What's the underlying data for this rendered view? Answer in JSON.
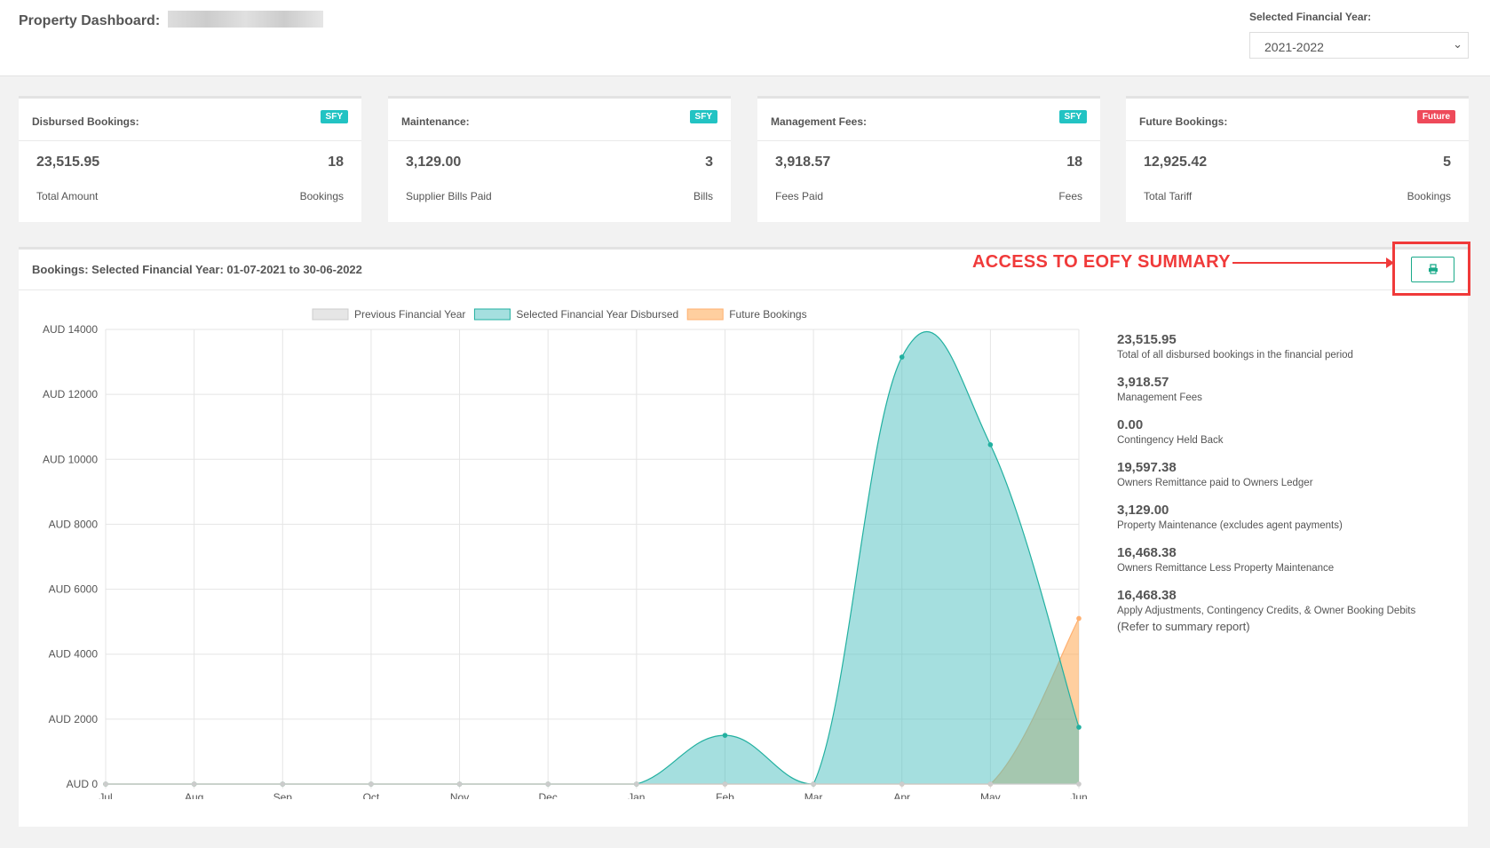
{
  "header": {
    "title": "Property Dashboard:",
    "fy_label": "Selected Financial Year:",
    "fy_value": "2021-2022"
  },
  "cards": [
    {
      "title": "Disbursed Bookings:",
      "badge": "SFY",
      "badge_color": "#22c3c3",
      "amount": "23,515.95",
      "amount_label": "Total Amount",
      "count": "18",
      "count_label": "Bookings"
    },
    {
      "title": "Maintenance:",
      "badge": "SFY",
      "badge_color": "#22c3c3",
      "amount": "3,129.00",
      "amount_label": "Supplier Bills Paid",
      "count": "3",
      "count_label": "Bills"
    },
    {
      "title": "Management Fees:",
      "badge": "SFY",
      "badge_color": "#22c3c3",
      "amount": "3,918.57",
      "amount_label": "Fees Paid",
      "count": "18",
      "count_label": "Fees"
    },
    {
      "title": "Future Bookings:",
      "badge": "Future",
      "badge_color": "#ee4a5a",
      "amount": "12,925.42",
      "amount_label": "Total Tariff",
      "count": "5",
      "count_label": "Bookings"
    }
  ],
  "panel": {
    "title": "Bookings: Selected Financial Year: 01-07-2021 to 30-06-2022",
    "annotation": "ACCESS TO EOFY SUMMARY",
    "print_icon": "printer-icon"
  },
  "summary": [
    {
      "value": "23,515.95",
      "label": "Total of all disbursed bookings in the financial period"
    },
    {
      "value": "3,918.57",
      "label": "Management Fees"
    },
    {
      "value": "0.00",
      "label": "Contingency Held Back"
    },
    {
      "value": "19,597.38",
      "label": "Owners Remittance paid to Owners Ledger"
    },
    {
      "value": "3,129.00",
      "label": "Property Maintenance (excludes agent payments)"
    },
    {
      "value": "16,468.38",
      "label": "Owners Remittance Less Property Maintenance"
    },
    {
      "value": "16,468.38",
      "label": "Apply Adjustments, Contingency Credits, & Owner Booking Debits"
    }
  ],
  "summary_note": "(Refer to summary report)",
  "chart_data": {
    "type": "area",
    "categories": [
      "Jul",
      "Aug",
      "Sep",
      "Oct",
      "Nov",
      "Dec",
      "Jan",
      "Feb",
      "Mar",
      "Apr",
      "May",
      "Jun"
    ],
    "ylim": [
      0,
      14000
    ],
    "yticks": [
      0,
      2000,
      4000,
      6000,
      8000,
      10000,
      12000,
      14000
    ],
    "ytick_prefix": "AUD ",
    "legend_position": "top",
    "series": [
      {
        "name": "Previous Financial Year",
        "color": "#cccccc",
        "fill": "#e6e6e6",
        "values": [
          0,
          0,
          0,
          0,
          0,
          0,
          0,
          0,
          0,
          0,
          0,
          0
        ]
      },
      {
        "name": "Selected Financial Year Disbursed",
        "color": "#22b0a0",
        "fill": "rgba(75,192,192,0.5)",
        "values": [
          0,
          0,
          0,
          0,
          0,
          0,
          0,
          1500,
          0,
          13150,
          10450,
          1750
        ]
      },
      {
        "name": "Future Bookings",
        "color": "#ffb070",
        "fill": "rgba(255,159,64,0.5)",
        "values": [
          0,
          0,
          0,
          0,
          0,
          0,
          0,
          0,
          0,
          0,
          0,
          5100
        ]
      }
    ]
  }
}
